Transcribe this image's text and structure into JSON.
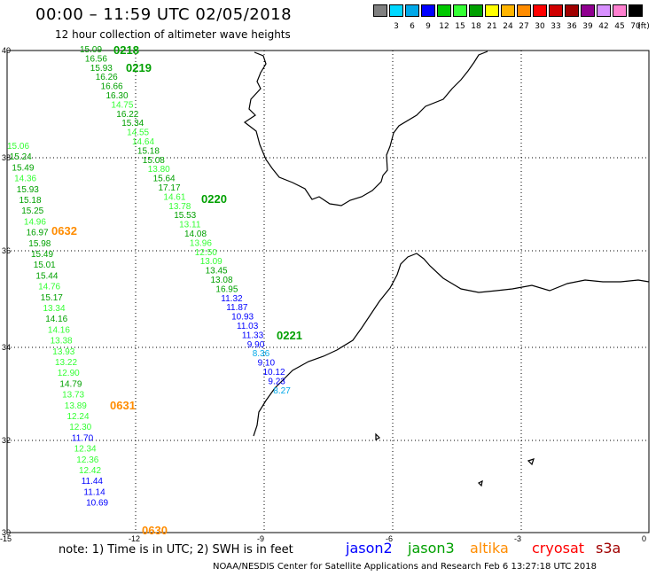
{
  "header": {
    "title": "00:00 – 11:59 UTC 02/05/2018",
    "subtitle": "12 hour collection of altimeter wave heights"
  },
  "legend": {
    "unit": "(ft)",
    "items": [
      {
        "label": "",
        "color": "#808080"
      },
      {
        "label": "3",
        "color": "#00d8ff"
      },
      {
        "label": "6",
        "color": "#00a8e8"
      },
      {
        "label": "9",
        "color": "#0000ff"
      },
      {
        "label": "12",
        "color": "#00c800"
      },
      {
        "label": "15",
        "color": "#34ff34"
      },
      {
        "label": "18",
        "color": "#00a000"
      },
      {
        "label": "21",
        "color": "#ffff00"
      },
      {
        "label": "24",
        "color": "#ffb400"
      },
      {
        "label": "27",
        "color": "#ff8c00"
      },
      {
        "label": "30",
        "color": "#ff0000"
      },
      {
        "label": "33",
        "color": "#d00000"
      },
      {
        "label": "36",
        "color": "#a00000"
      },
      {
        "label": "39",
        "color": "#900090"
      },
      {
        "label": "42",
        "color": "#d890ff"
      },
      {
        "label": "45",
        "color": "#ff80d0"
      },
      {
        "label": "70",
        "color": "#000000"
      }
    ]
  },
  "axes": {
    "lat_labels": [
      "40",
      "38",
      "36",
      "34",
      "32",
      "30"
    ],
    "lon_labels": [
      "-15",
      "-12",
      "-9",
      "-6",
      "-3",
      "0"
    ]
  },
  "tracks": [
    {
      "values": [
        "15.09",
        "16.56",
        "15.93",
        "16.26",
        "16.66",
        "16.30",
        "14.75",
        "16.22",
        "15.34",
        "14.55",
        "14.64",
        "15.18",
        "15.08",
        "13.80",
        "15.64",
        "17.17",
        "14.61",
        "13.78",
        "15.53",
        "13.11",
        "14.08",
        "13.96",
        "12.50",
        "13.09",
        "13.45",
        "13.08",
        "16.95",
        "11.32",
        "11.87",
        "10.93",
        "11.03",
        "11.33",
        "9.90",
        "8.36",
        "9.10",
        "10.12",
        "9.23",
        "8.27"
      ],
      "colors": [
        "#00a000",
        "#00a000",
        "#00a000",
        "#00a000",
        "#00a000",
        "#00a000",
        "#34ff34",
        "#00a000",
        "#00a000",
        "#34ff34",
        "#34ff34",
        "#00a000",
        "#00a000",
        "#34ff34",
        "#00a000",
        "#00a000",
        "#34ff34",
        "#34ff34",
        "#00a000",
        "#34ff34",
        "#00a000",
        "#34ff34",
        "#34ff34",
        "#34ff34",
        "#00a000",
        "#00a000",
        "#00a000",
        "#0000ff",
        "#0000ff",
        "#0000ff",
        "#0000ff",
        "#0000ff",
        "#0000ff",
        "#00a8e8",
        "#0000ff",
        "#0000ff",
        "#0000ff",
        "#00a8e8"
      ]
    },
    {
      "values": [
        "15.06",
        "15.24",
        "15.49",
        "14.36",
        "15.93",
        "15.18",
        "15.25",
        "14.96",
        "16.97",
        "15.98",
        "15.49",
        "15.01",
        "15.44",
        "14.76",
        "15.17",
        "13.34",
        "14.16",
        "14.16",
        "13.38",
        "13.93",
        "13.22",
        "12.90",
        "14.79",
        "13.73",
        "13.89",
        "12.24",
        "12.30",
        "11.70",
        "12.34",
        "12.36",
        "12.42",
        "11.44",
        "11.14",
        "10.69"
      ],
      "colors": [
        "#34ff34",
        "#00a000",
        "#00a000",
        "#34ff34",
        "#00a000",
        "#00a000",
        "#00a000",
        "#34ff34",
        "#00a000",
        "#00a000",
        "#00a000",
        "#00a000",
        "#00a000",
        "#34ff34",
        "#00a000",
        "#34ff34",
        "#00a000",
        "#34ff34",
        "#34ff34",
        "#34ff34",
        "#34ff34",
        "#34ff34",
        "#00a000",
        "#34ff34",
        "#34ff34",
        "#34ff34",
        "#34ff34",
        "#0000ff",
        "#34ff34",
        "#34ff34",
        "#34ff34",
        "#0000ff",
        "#0000ff",
        "#0000ff"
      ]
    }
  ],
  "time_tags": [
    {
      "label": "0218",
      "color": "#00a000"
    },
    {
      "label": "0219",
      "color": "#00a000"
    },
    {
      "label": "0220",
      "color": "#00a000"
    },
    {
      "label": "0221",
      "color": "#00a000"
    },
    {
      "label": "0632",
      "color": "#ff8c00"
    },
    {
      "label": "0631",
      "color": "#ff8c00"
    },
    {
      "label": "0630",
      "color": "#ff8c00"
    }
  ],
  "note": "note: 1) Time is in UTC; 2) SWH is in feet",
  "satellites": [
    {
      "name": "jason2",
      "color": "#0000ff"
    },
    {
      "name": "jason3",
      "color": "#00a000"
    },
    {
      "name": "altika",
      "color": "#ff8c00"
    },
    {
      "name": "cryosat",
      "color": "#ff0000"
    },
    {
      "name": "s3a",
      "color": "#a00000"
    }
  ],
  "footer": "NOAA/NESDIS Center for Satellite Applications and Research   Feb  6 13:27:18 UTC 2018"
}
